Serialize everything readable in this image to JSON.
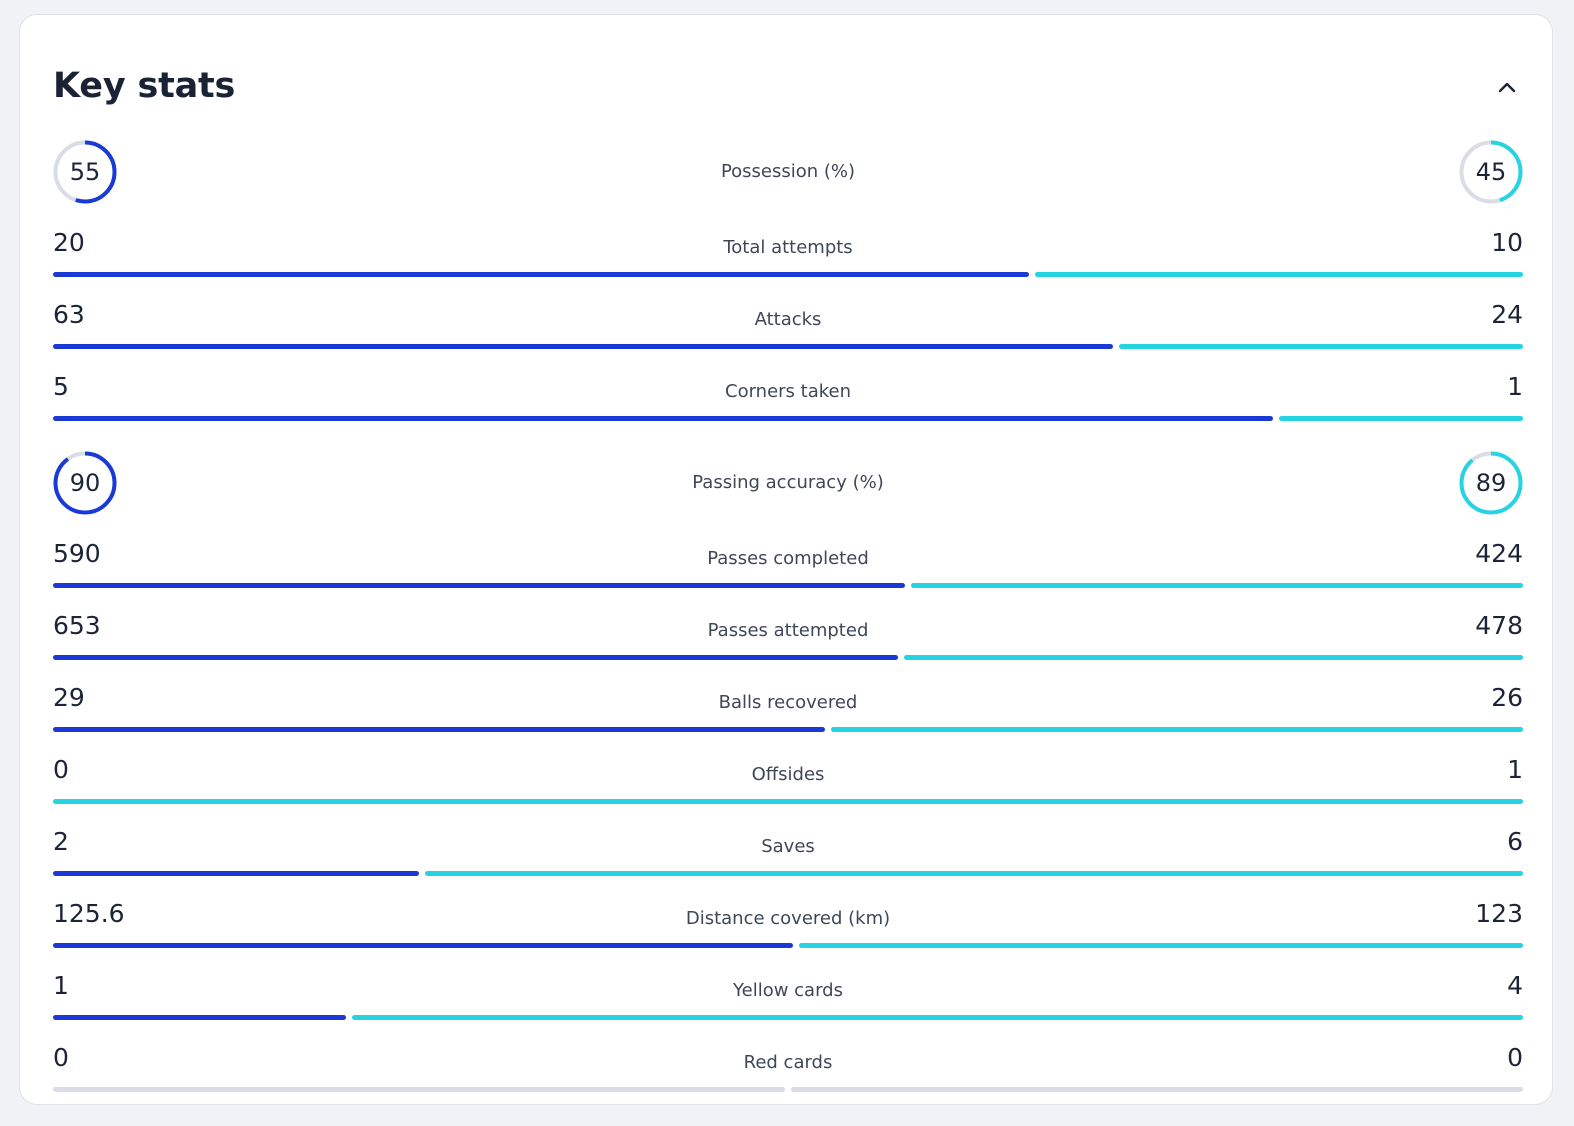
{
  "title": "Key stats",
  "colors": {
    "home": "#1a3ad6",
    "away": "#25d4e0",
    "empty": "#dadde6"
  },
  "stats": [
    {
      "type": "circle",
      "label": "Possession (%)",
      "home": "55",
      "away": "45",
      "home_pct": 55,
      "away_pct": 45
    },
    {
      "type": "bar",
      "label": "Total attempts",
      "home": "20",
      "away": "10"
    },
    {
      "type": "bar",
      "label": "Attacks",
      "home": "63",
      "away": "24"
    },
    {
      "type": "bar",
      "label": "Corners taken",
      "home": "5",
      "away": "1"
    },
    {
      "type": "circle",
      "label": "Passing accuracy (%)",
      "home": "90",
      "away": "89",
      "home_pct": 90,
      "away_pct": 89
    },
    {
      "type": "bar",
      "label": "Passes completed",
      "home": "590",
      "away": "424"
    },
    {
      "type": "bar",
      "label": "Passes attempted",
      "home": "653",
      "away": "478"
    },
    {
      "type": "bar",
      "label": "Balls recovered",
      "home": "29",
      "away": "26"
    },
    {
      "type": "bar",
      "label": "Offsides",
      "home": "0",
      "away": "1"
    },
    {
      "type": "bar",
      "label": "Saves",
      "home": "2",
      "away": "6"
    },
    {
      "type": "bar",
      "label": "Distance covered (km)",
      "home": "125.6",
      "away": "123"
    },
    {
      "type": "bar",
      "label": "Yellow cards",
      "home": "1",
      "away": "4"
    },
    {
      "type": "bar",
      "label": "Red cards",
      "home": "0",
      "away": "0"
    }
  ]
}
